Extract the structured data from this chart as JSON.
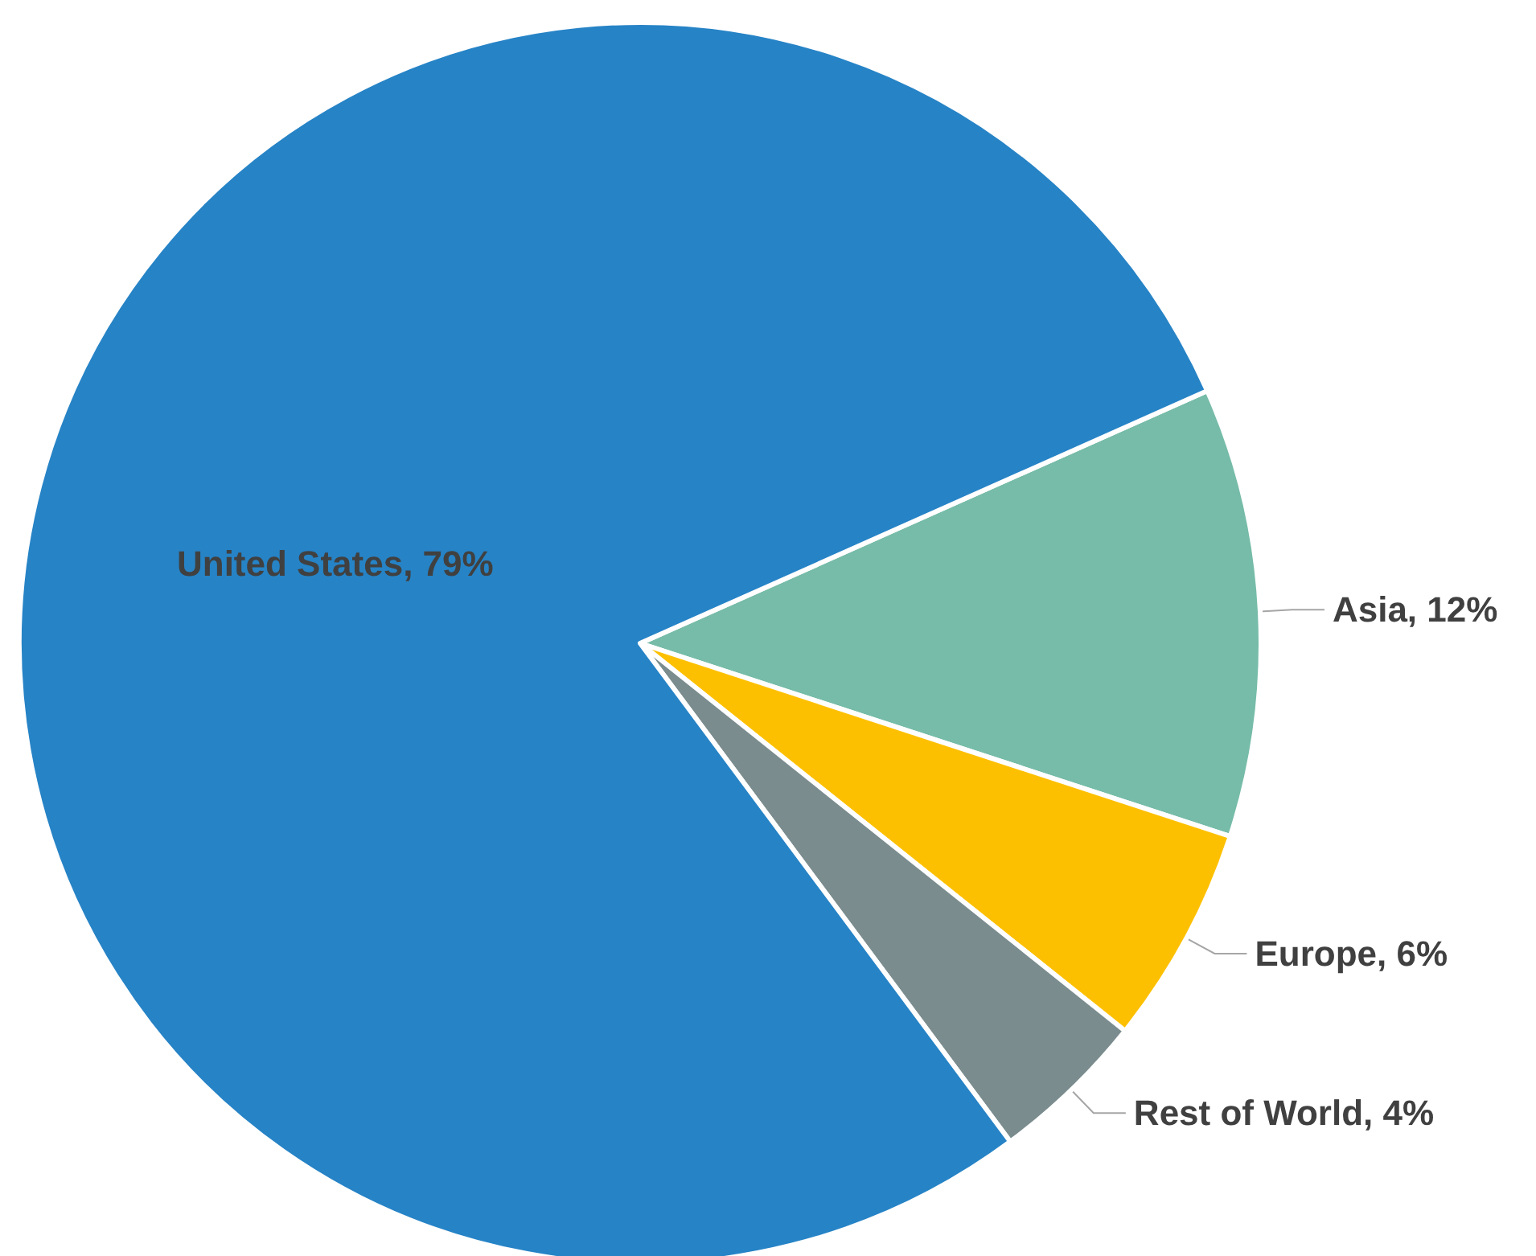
{
  "chart_data": {
    "type": "pie",
    "categories": [
      "Asia",
      "Europe",
      "Rest of World",
      "United States"
    ],
    "values": [
      11.7,
      5.7,
      4.1,
      78.5
    ],
    "value_labels": [
      "12%",
      "6%",
      "4%",
      "79%"
    ],
    "colors": [
      "#76bca8",
      "#fdc000",
      "#7a8c8e",
      "#2683c6"
    ]
  }
}
